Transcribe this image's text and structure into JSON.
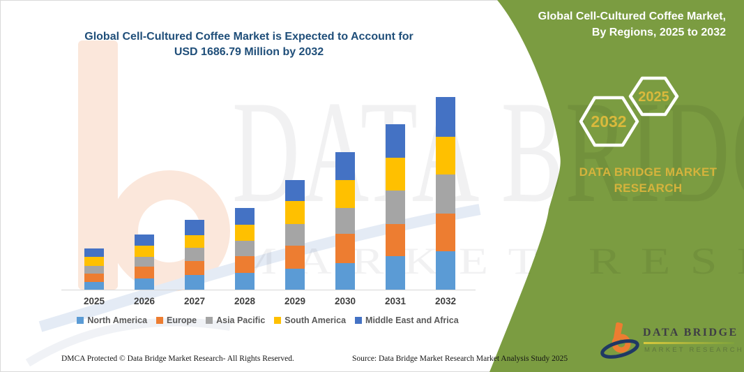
{
  "chart": {
    "title_line1": "Global Cell-Cultured Coffee Market is Expected to Account for",
    "title_line2": "USD 1686.79 Million by 2032"
  },
  "chart_data": {
    "type": "bar",
    "stacked": true,
    "unit": "USD Million",
    "title": "Global Cell-Cultured Coffee Market is Expected to Account for USD 1686.79 Million by 2032",
    "categories": [
      "2025",
      "2026",
      "2027",
      "2028",
      "2029",
      "2030",
      "2031",
      "2032"
    ],
    "series": [
      {
        "name": "North America",
        "color": "#5B9BD5",
        "values": [
          68,
          95,
          130,
          149,
          183,
          235,
          293,
          337.7
        ]
      },
      {
        "name": "Europe",
        "color": "#ED7D31",
        "values": [
          73,
          106,
          122,
          143,
          204,
          255,
          284,
          331.6
        ]
      },
      {
        "name": "Asia Pacific",
        "color": "#A5A5A5",
        "values": [
          67,
          84,
          114,
          138,
          190,
          226,
          289,
          342.0
        ]
      },
      {
        "name": "South America",
        "color": "#FFC000",
        "values": [
          78,
          100,
          112,
          139,
          198,
          245,
          290,
          329.7
        ]
      },
      {
        "name": "Middle East and Africa",
        "color": "#4472C4",
        "values": [
          74,
          96,
          131,
          148,
          184,
          242,
          291,
          345.79
        ]
      }
    ],
    "totals": [
      360,
      481,
      609,
      717,
      959,
      1203,
      1447,
      1686.79
    ],
    "ylim": [
      0,
      1700
    ],
    "gridlines": false,
    "legend_position": "bottom",
    "xlabel": "",
    "ylabel": ""
  },
  "panel": {
    "heading_line1": "Global Cell-Cultured Coffee Market,",
    "heading_line2": "By Regions, 2025 to 2032",
    "hex_back_year": "2032",
    "hex_front_year": "2025",
    "brand_line1": "DATA BRIDGE MARKET",
    "brand_line2": "RESEARCH",
    "green": "#7B9C41",
    "gold": "#D5B33C"
  },
  "logo": {
    "name": "DATA BRIDGE",
    "subtitle": "MARKET RESEARCH"
  },
  "footer": {
    "dmca": "DMCA Protected © Data Bridge Market Research-  All Rights Reserved.",
    "source": "Source: Data Bridge Market Research  Market Analysis Study 2025"
  },
  "watermark": {
    "line1": "DATA BRIDGE",
    "line2": "MARKET RESEARCH"
  }
}
